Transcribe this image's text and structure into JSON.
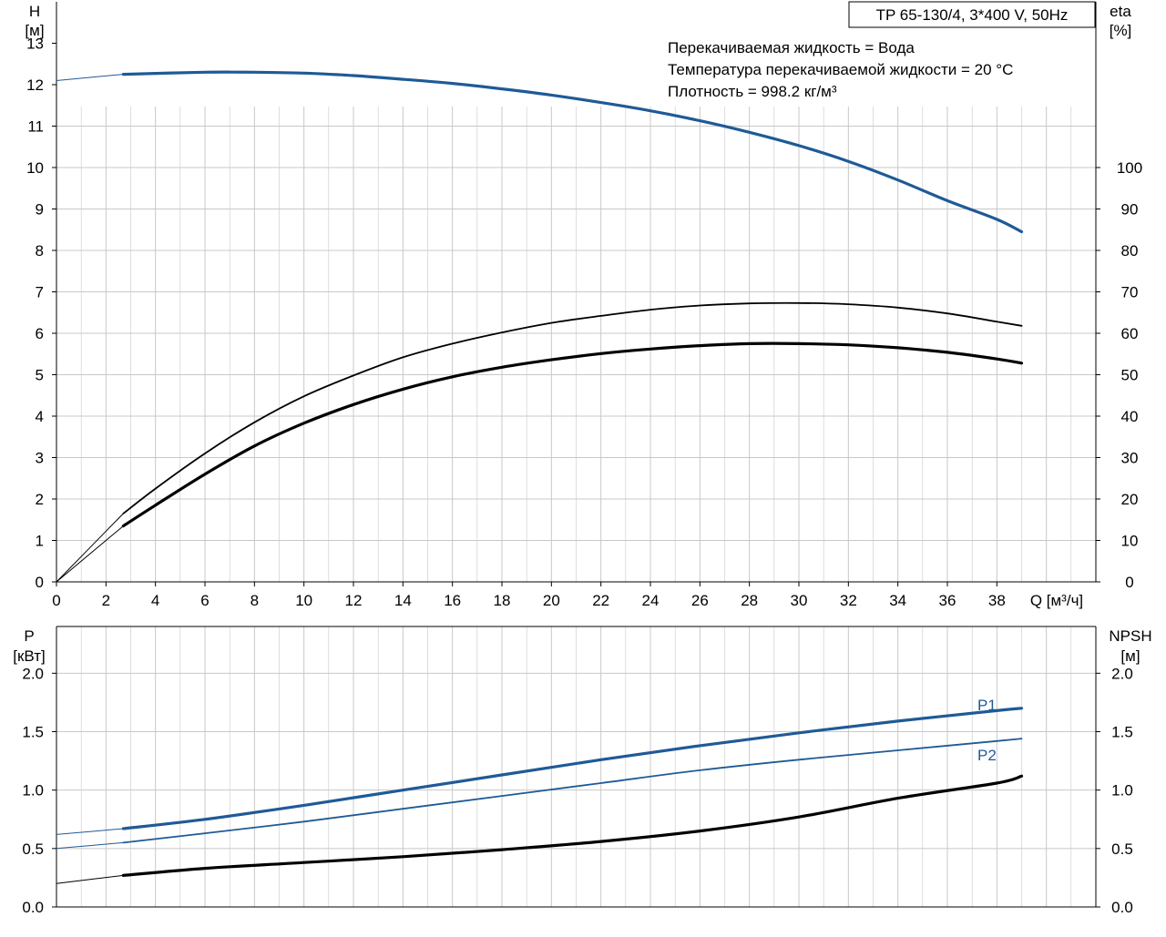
{
  "header": {
    "model": "TP 65-130/4, 3*400 V, 50Hz",
    "notes": [
      "Перекачиваемая жидкость = Вода",
      "Температура перекачиваемой жидкости = 20 °C",
      "Плотность = 998.2 кг/м³"
    ]
  },
  "colors": {
    "blue": "#1f5a96",
    "black": "#000000",
    "grid": "#c8c8c8"
  },
  "chart_data": [
    {
      "type": "line",
      "xlabel": "Q [м³/ч]",
      "xlim": [
        0,
        42
      ],
      "x_ticks": [
        0,
        2,
        4,
        6,
        8,
        10,
        12,
        14,
        16,
        18,
        20,
        22,
        24,
        26,
        28,
        30,
        32,
        34,
        36,
        38
      ],
      "left_axis": {
        "label_top": "H",
        "label_unit": "[м]",
        "ylim": [
          0,
          14
        ],
        "ticks": [
          0,
          1,
          2,
          3,
          4,
          5,
          6,
          7,
          8,
          9,
          10,
          11,
          12,
          13
        ]
      },
      "right_axis": {
        "label_top": "eta",
        "label_unit": "[%]",
        "ylim": [
          0,
          140
        ],
        "ticks": [
          0,
          10,
          20,
          30,
          40,
          50,
          60,
          70,
          80,
          90,
          100
        ]
      },
      "grid": true,
      "series": [
        {
          "axis": "left",
          "color": "blue",
          "style": "thick",
          "start_thin": true,
          "x": [
            0,
            2.7,
            6,
            8,
            10,
            12,
            14,
            16,
            18,
            20,
            22,
            24,
            26,
            28,
            30,
            32,
            34,
            36,
            38,
            39
          ],
          "y": [
            12.1,
            12.25,
            12.3,
            12.3,
            12.28,
            12.22,
            12.13,
            12.03,
            11.9,
            11.75,
            11.57,
            11.37,
            11.13,
            10.85,
            10.53,
            10.15,
            9.7,
            9.2,
            8.75,
            8.45
          ]
        },
        {
          "axis": "right",
          "color": "black",
          "style": "thin",
          "start_thin": true,
          "x": [
            0,
            2.7,
            4,
            6,
            8,
            10,
            12,
            14,
            16,
            18,
            20,
            22,
            24,
            26,
            28,
            30,
            32,
            34,
            36,
            38,
            39
          ],
          "y": [
            0,
            16.5,
            22.5,
            31,
            38.5,
            44.8,
            49.8,
            54.2,
            57.5,
            60.2,
            62.5,
            64.2,
            65.7,
            66.7,
            67.2,
            67.3,
            67,
            66.2,
            64.8,
            62.8,
            61.8
          ]
        },
        {
          "axis": "right",
          "color": "black",
          "style": "thick",
          "start_thin": true,
          "x": [
            0,
            2.7,
            4,
            6,
            8,
            10,
            12,
            14,
            16,
            18,
            20,
            22,
            24,
            26,
            28,
            30,
            32,
            34,
            36,
            38,
            39
          ],
          "y": [
            0,
            13.5,
            18.5,
            26,
            32.8,
            38.3,
            42.8,
            46.5,
            49.5,
            51.8,
            53.6,
            55.1,
            56.2,
            57,
            57.5,
            57.5,
            57.2,
            56.5,
            55.4,
            53.8,
            52.8
          ]
        }
      ]
    },
    {
      "type": "line",
      "xlim": [
        0,
        42
      ],
      "left_axis": {
        "label_top": "P",
        "label_unit": "[кВт]",
        "ylim": [
          0,
          2.4
        ],
        "ticks": [
          "0.0",
          "0.5",
          "1.0",
          "1.5",
          "2.0"
        ]
      },
      "right_axis": {
        "label_top": "NPSH",
        "label_unit": "[м]",
        "ylim": [
          0,
          2.4
        ],
        "ticks": [
          "0.0",
          "0.5",
          "1.0",
          "1.5",
          "2.0"
        ]
      },
      "grid": true,
      "series": [
        {
          "name": "P1",
          "axis": "left",
          "color": "blue",
          "style": "thick",
          "start_thin": true,
          "x": [
            0,
            2.7,
            6,
            10,
            14,
            18,
            22,
            26,
            30,
            34,
            38,
            39
          ],
          "y": [
            0.62,
            0.67,
            0.75,
            0.87,
            1.0,
            1.13,
            1.26,
            1.38,
            1.49,
            1.59,
            1.68,
            1.7
          ]
        },
        {
          "name": "P2",
          "axis": "left",
          "color": "blue",
          "style": "thin",
          "start_thin": true,
          "x": [
            0,
            2.7,
            6,
            10,
            14,
            18,
            22,
            26,
            30,
            34,
            38,
            39
          ],
          "y": [
            0.5,
            0.55,
            0.63,
            0.73,
            0.84,
            0.95,
            1.06,
            1.17,
            1.26,
            1.34,
            1.42,
            1.44
          ]
        },
        {
          "axis": "right",
          "color": "black",
          "style": "thick",
          "start_thin": true,
          "x": [
            0,
            2.7,
            6,
            10,
            14,
            18,
            22,
            26,
            30,
            34,
            38,
            39
          ],
          "y": [
            0.2,
            0.27,
            0.33,
            0.38,
            0.43,
            0.49,
            0.56,
            0.65,
            0.77,
            0.93,
            1.06,
            1.12
          ]
        }
      ]
    }
  ]
}
